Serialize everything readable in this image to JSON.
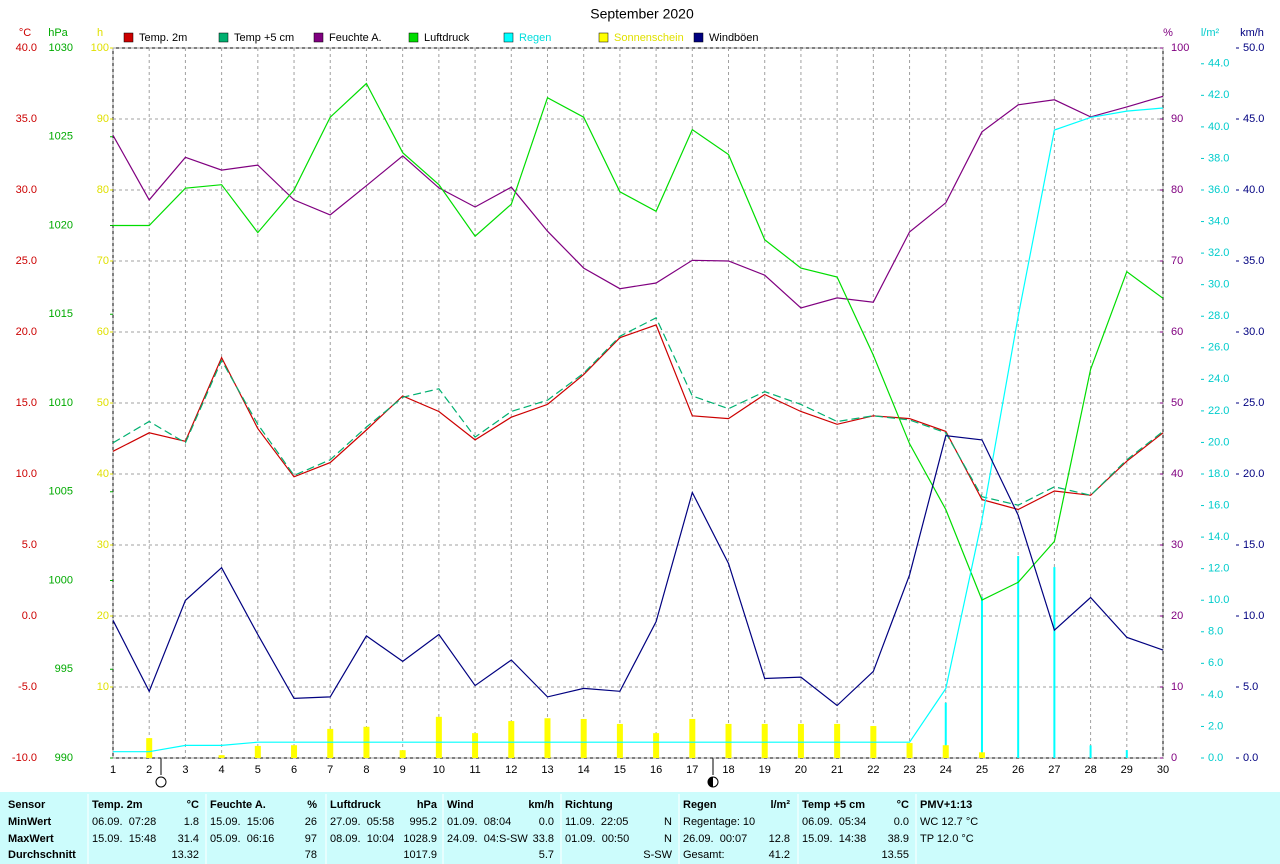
{
  "chart_data": {
    "type": "line",
    "title": "September 2020",
    "x": [
      1,
      2,
      3,
      4,
      5,
      6,
      7,
      8,
      9,
      10,
      11,
      12,
      13,
      14,
      15,
      16,
      17,
      18,
      19,
      20,
      21,
      22,
      23,
      24,
      25,
      26,
      27,
      28,
      29,
      30
    ],
    "xlim": [
      1,
      30
    ],
    "xticks": [
      1,
      2,
      3,
      4,
      5,
      6,
      7,
      8,
      9,
      10,
      11,
      12,
      13,
      14,
      15,
      16,
      17,
      18,
      19,
      20,
      21,
      22,
      23,
      24,
      25,
      26,
      27,
      28,
      29,
      30
    ],
    "grid": true,
    "axes": [
      {
        "name": "°C",
        "color": "#cc0000",
        "lim": [
          -10,
          40
        ],
        "ticks": [
          {
            "value": -10,
            "label": "-10.0"
          },
          {
            "value": -5,
            "label": "-5.0"
          },
          {
            "value": 0,
            "label": "0.0"
          },
          {
            "value": 5,
            "label": "5.0"
          },
          {
            "value": 10,
            "label": "10.0"
          },
          {
            "value": 15,
            "label": "15.0"
          },
          {
            "value": 20,
            "label": "20.0"
          },
          {
            "value": 25,
            "label": "25.0"
          },
          {
            "value": 30,
            "label": "30.0"
          },
          {
            "value": 35,
            "label": "35.0"
          },
          {
            "value": 40,
            "label": "40.0"
          }
        ]
      },
      {
        "name": "hPa",
        "color": "#00aa00",
        "lim": [
          990,
          1030
        ],
        "ticks": [
          990,
          995,
          1000,
          1005,
          1010,
          1015,
          1020,
          1025,
          1030
        ]
      },
      {
        "name": "h",
        "color": "#e0e000",
        "lim": [
          0,
          100
        ],
        "ticks": [
          10,
          20,
          30,
          40,
          50,
          60,
          70,
          80,
          90,
          100
        ]
      },
      {
        "name": "%",
        "color": "#800080",
        "lim": [
          0,
          100
        ],
        "ticks": [
          0,
          10,
          20,
          30,
          40,
          50,
          60,
          70,
          80,
          90,
          100
        ]
      },
      {
        "name": "l/m²",
        "color": "#00cccc",
        "lim": [
          0,
          45
        ],
        "ticks": [
          {
            "value": 0,
            "label": "0.0"
          },
          {
            "value": 2,
            "label": "2.0"
          },
          {
            "value": 4,
            "label": "4.0"
          },
          {
            "value": 6,
            "label": "6.0"
          },
          {
            "value": 8,
            "label": "8.0"
          },
          {
            "value": 10,
            "label": "10.0"
          },
          {
            "value": 12,
            "label": "12.0"
          },
          {
            "value": 14,
            "label": "14.0"
          },
          {
            "value": 16,
            "label": "16.0"
          },
          {
            "value": 18,
            "label": "18.0"
          },
          {
            "value": 20,
            "label": "20.0"
          },
          {
            "value": 22,
            "label": "22.0"
          },
          {
            "value": 24,
            "label": "24.0"
          },
          {
            "value": 26,
            "label": "26.0"
          },
          {
            "value": 28,
            "label": "28.0"
          },
          {
            "value": 30,
            "label": "30.0"
          },
          {
            "value": 32,
            "label": "32.0"
          },
          {
            "value": 34,
            "label": "34.0"
          },
          {
            "value": 36,
            "label": "36.0"
          },
          {
            "value": 38,
            "label": "38.0"
          },
          {
            "value": 40,
            "label": "40.0"
          },
          {
            "value": 42,
            "label": "42.0"
          },
          {
            "value": 44,
            "label": "44.0"
          }
        ]
      },
      {
        "name": "km/h",
        "color": "#000080",
        "lim": [
          0,
          50
        ],
        "ticks": [
          {
            "value": 0,
            "label": "0.0"
          },
          {
            "value": 5,
            "label": "5.0"
          },
          {
            "value": 10,
            "label": "10.0"
          },
          {
            "value": 15,
            "label": "15.0"
          },
          {
            "value": 20,
            "label": "20.0"
          },
          {
            "value": 25,
            "label": "25.0"
          },
          {
            "value": 30,
            "label": "30.0"
          },
          {
            "value": 35,
            "label": "35.0"
          },
          {
            "value": 40,
            "label": "40.0"
          },
          {
            "value": 45,
            "label": "45.0"
          },
          {
            "value": 50,
            "label": "50.0"
          }
        ]
      }
    ],
    "series": [
      {
        "name": "Temp. 2m",
        "color": "#cc0000",
        "axis": 0,
        "values": [
          11.6,
          12.9,
          12.3,
          18.2,
          13.2,
          9.8,
          10.8,
          13.1,
          15.5,
          14.4,
          12.4,
          14.0,
          14.9,
          17.0,
          19.6,
          20.5,
          14.1,
          13.9,
          15.6,
          14.4,
          13.5,
          14.1,
          13.9,
          13.0,
          8.2,
          7.5,
          8.8,
          8.5,
          10.9,
          12.9
        ]
      },
      {
        "name": "Temp +5 cm",
        "color": "#00b070",
        "axis": 0,
        "dashed": true,
        "values": [
          12.2,
          13.7,
          12.2,
          18.0,
          13.5,
          9.9,
          11.0,
          13.3,
          15.4,
          16.0,
          12.6,
          14.4,
          15.2,
          17.1,
          19.7,
          21.0,
          15.5,
          14.6,
          15.8,
          14.9,
          13.7,
          14.1,
          13.8,
          12.9,
          8.4,
          7.8,
          9.1,
          8.5,
          11.0,
          13.0
        ]
      },
      {
        "name": "Feuchte A.",
        "color": "#800080",
        "axis": 3,
        "values": [
          87.7,
          78.6,
          84.6,
          82.8,
          83.5,
          78.6,
          76.5,
          80.6,
          84.8,
          80.3,
          77.6,
          80.4,
          74.2,
          69.0,
          66.1,
          66.9,
          70.1,
          70.0,
          68.0,
          63.4,
          64.8,
          64.2,
          74.1,
          78.2,
          88.2,
          92.0,
          92.7,
          90.3,
          91.7,
          93.2
        ]
      },
      {
        "name": "Luftdruck",
        "color": "#00dd00",
        "axis": 1,
        "values": [
          1020.0,
          1020.0,
          1022.1,
          1022.3,
          1019.6,
          1022.0,
          1026.1,
          1028.0,
          1024.1,
          1022.3,
          1019.4,
          1021.2,
          1027.2,
          1026.1,
          1021.9,
          1020.8,
          1025.4,
          1024.0,
          1019.2,
          1017.6,
          1017.1,
          1012.7,
          1007.7,
          1004.0,
          998.9,
          999.9,
          1002.2,
          1011.9,
          1017.4,
          1015.9
        ]
      },
      {
        "name": "Regen",
        "color": "#00ffff",
        "label_color": "#00dddd",
        "axis": 4,
        "values": [
          0.4,
          0.4,
          0.8,
          0.8,
          1.0,
          1.0,
          1.0,
          1.0,
          1.0,
          1.0,
          1.0,
          1.0,
          1.0,
          1.0,
          1.0,
          1.0,
          1.0,
          1.0,
          1.0,
          1.0,
          1.0,
          1.0,
          1.0,
          4.4,
          15.1,
          28.0,
          39.8,
          40.6,
          41.0,
          41.2
        ],
        "daily": [
          0,
          0.4,
          0,
          0,
          0,
          0,
          0,
          0,
          0,
          0,
          0,
          0,
          0,
          0,
          0,
          0,
          0,
          0,
          0,
          0,
          0,
          0,
          0,
          3.5,
          10.2,
          12.8,
          12.1,
          0.8,
          0.5,
          0
        ]
      },
      {
        "name": "Sonnenschein",
        "color": "#ffff00",
        "label_color": "#e0e000",
        "axis": 2,
        "bars": true,
        "values": [
          0,
          2.8,
          0,
          0.4,
          1.7,
          1.8,
          4.1,
          4.4,
          1.1,
          5.8,
          3.5,
          5.2,
          5.6,
          5.5,
          4.8,
          3.5,
          5.5,
          4.8,
          4.8,
          4.8,
          4.8,
          4.5,
          2.1,
          1.8,
          0.8,
          0,
          0,
          0,
          0,
          0
        ]
      },
      {
        "name": "Windböen",
        "color": "#000080",
        "axis": 5,
        "values": [
          9.7,
          4.7,
          11.1,
          13.4,
          8.7,
          4.2,
          4.3,
          8.6,
          6.8,
          8.7,
          5.1,
          6.9,
          4.3,
          4.9,
          4.7,
          9.6,
          18.7,
          13.7,
          5.6,
          5.7,
          3.7,
          6.1,
          12.9,
          22.7,
          22.4,
          17.1,
          9.0,
          11.3,
          8.5,
          7.6
        ]
      }
    ]
  },
  "table": {
    "row_labels": [
      "Sensor",
      "MinWert",
      "MaxWert",
      "Durchschnitt"
    ],
    "columns": [
      {
        "title": "Temp. 2m",
        "unit": "°C",
        "cells": [
          {
            "left": "06.09.  07:28",
            "right": "1.8"
          },
          {
            "left": "15.09.  15:48",
            "right": "31.4"
          },
          {
            "right": "13.32"
          }
        ]
      },
      {
        "title": "Feuchte A.",
        "unit": "%",
        "cells": [
          {
            "left": "15.09.  15:06",
            "right": "26"
          },
          {
            "left": "05.09.  06:16",
            "right": "97"
          },
          {
            "right": "78"
          }
        ]
      },
      {
        "title": "Luftdruck",
        "unit": "hPa",
        "cells": [
          {
            "left": "27.09.  05:58",
            "right": "995.2"
          },
          {
            "left": "08.09.  10:04",
            "right": "1028.9"
          },
          {
            "right": "1017.9"
          }
        ]
      },
      {
        "title": "Wind",
        "unit": "km/h",
        "cells": [
          {
            "left": "01.09.  08:04",
            "right": "0.0"
          },
          {
            "left": "24.09.  04:S-SW",
            "right": "33.8"
          },
          {
            "right": "5.7"
          }
        ]
      },
      {
        "title": "Richtung",
        "cells": [
          {
            "left": "11.09.  22:05",
            "right": "N"
          },
          {
            "left": "01.09.  00:50",
            "right": "N"
          },
          {
            "right": "S-SW"
          }
        ]
      },
      {
        "title": "Regen",
        "unit": "l/m²",
        "cells": [
          {
            "left": "Regentage: 10"
          },
          {
            "left": "26.09.  00:07",
            "right": "12.8"
          },
          {
            "left": "Gesamt:",
            "right": "41.2"
          }
        ]
      },
      {
        "title": "Temp +5 cm",
        "unit": "°C",
        "cells": [
          {
            "left": "06.09.  05:34",
            "right": "0.0"
          },
          {
            "left": "15.09.  14:38",
            "right": "38.9"
          },
          {
            "right": "13.55"
          }
        ]
      },
      {
        "title": "PMV+1:13",
        "cells": [
          {
            "left": "WC 12.7 °C"
          },
          {
            "left": "TP 12.0 °C"
          }
        ]
      }
    ]
  }
}
